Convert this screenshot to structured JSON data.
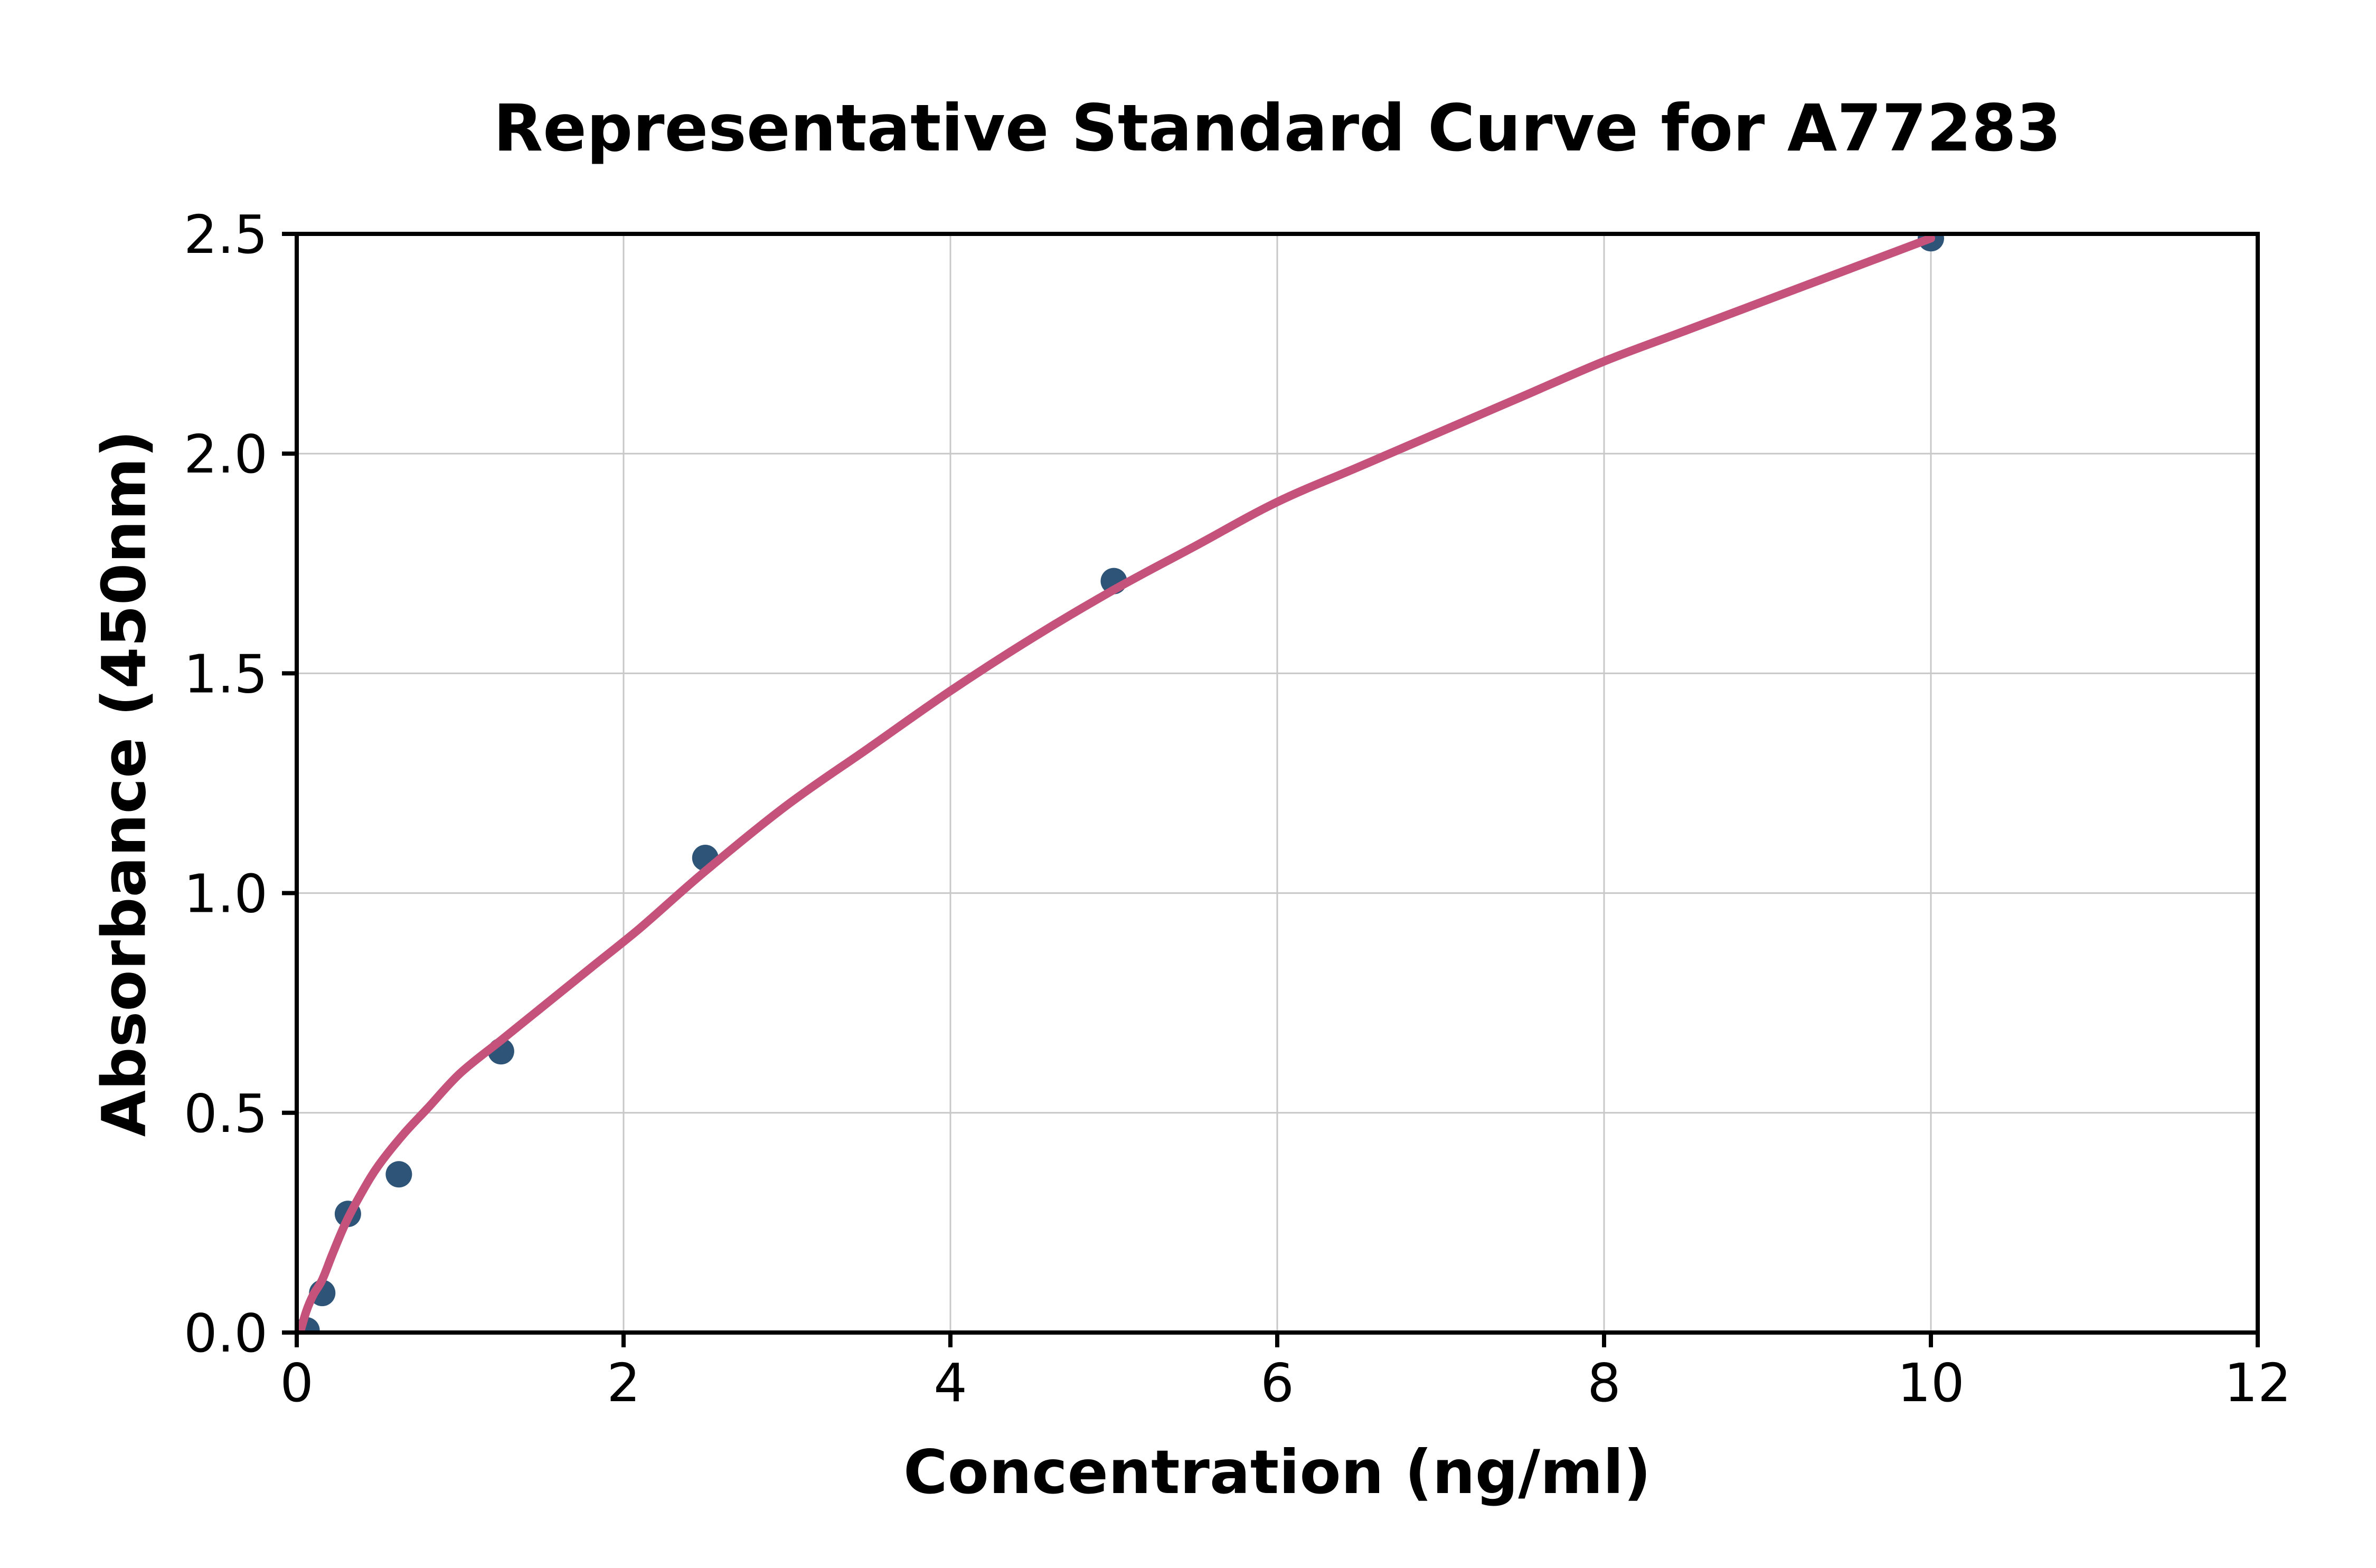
{
  "figure": {
    "background": "#ffffff"
  },
  "chart_data": {
    "type": "scatter",
    "title": "Representative Standard Curve for A77283",
    "xlabel": "Concentration (ng/ml)",
    "ylabel": "Absorbance (450nm)",
    "xlim": [
      0,
      12
    ],
    "ylim": [
      0,
      2.5
    ],
    "grid": true,
    "legend": "none",
    "xticks": {
      "values": [
        0,
        2,
        4,
        6,
        8,
        10,
        12
      ],
      "labels": [
        "0",
        "2",
        "4",
        "6",
        "8",
        "10",
        "12"
      ]
    },
    "yticks": {
      "values": [
        0,
        0.5,
        1.0,
        1.5,
        2.0,
        2.5
      ],
      "labels": [
        "0.0",
        "0.5",
        "1.0",
        "1.5",
        "2.0",
        "2.5"
      ]
    },
    "colors": {
      "point": "#2E5477",
      "curve": "#C5527B",
      "grid": "#C8C8C8",
      "axis": "#000000",
      "text": "#000000"
    },
    "point_radius_px": 25,
    "curve_stroke_px": 16,
    "series": [
      {
        "name": "standard-points",
        "type": "scatter",
        "color": "#2E5477",
        "points": [
          [
            0.06,
            0.005
          ],
          [
            0.156,
            0.09
          ],
          [
            0.313,
            0.27
          ],
          [
            0.625,
            0.36
          ],
          [
            1.25,
            0.64
          ],
          [
            2.5,
            1.08
          ],
          [
            5.0,
            1.71
          ],
          [
            10.0,
            2.49
          ]
        ]
      },
      {
        "name": "fit-curve",
        "type": "line",
        "color": "#C5527B",
        "points": [
          [
            0.02,
            0.0
          ],
          [
            0.06,
            0.05
          ],
          [
            0.1,
            0.085
          ],
          [
            0.156,
            0.12
          ],
          [
            0.22,
            0.18
          ],
          [
            0.3,
            0.25
          ],
          [
            0.4,
            0.32
          ],
          [
            0.5,
            0.38
          ],
          [
            0.65,
            0.45
          ],
          [
            0.8,
            0.51
          ],
          [
            1.0,
            0.59
          ],
          [
            1.25,
            0.665
          ],
          [
            1.5,
            0.74
          ],
          [
            1.8,
            0.83
          ],
          [
            2.1,
            0.92
          ],
          [
            2.5,
            1.05
          ],
          [
            3.0,
            1.2
          ],
          [
            3.5,
            1.33
          ],
          [
            4.0,
            1.46
          ],
          [
            4.5,
            1.58
          ],
          [
            5.0,
            1.69
          ],
          [
            5.5,
            1.79
          ],
          [
            6.0,
            1.89
          ],
          [
            6.5,
            1.97
          ],
          [
            7.0,
            2.05
          ],
          [
            7.5,
            2.13
          ],
          [
            8.0,
            2.21
          ],
          [
            8.5,
            2.28
          ],
          [
            9.0,
            2.35
          ],
          [
            9.5,
            2.42
          ],
          [
            10.0,
            2.49
          ]
        ]
      }
    ]
  }
}
